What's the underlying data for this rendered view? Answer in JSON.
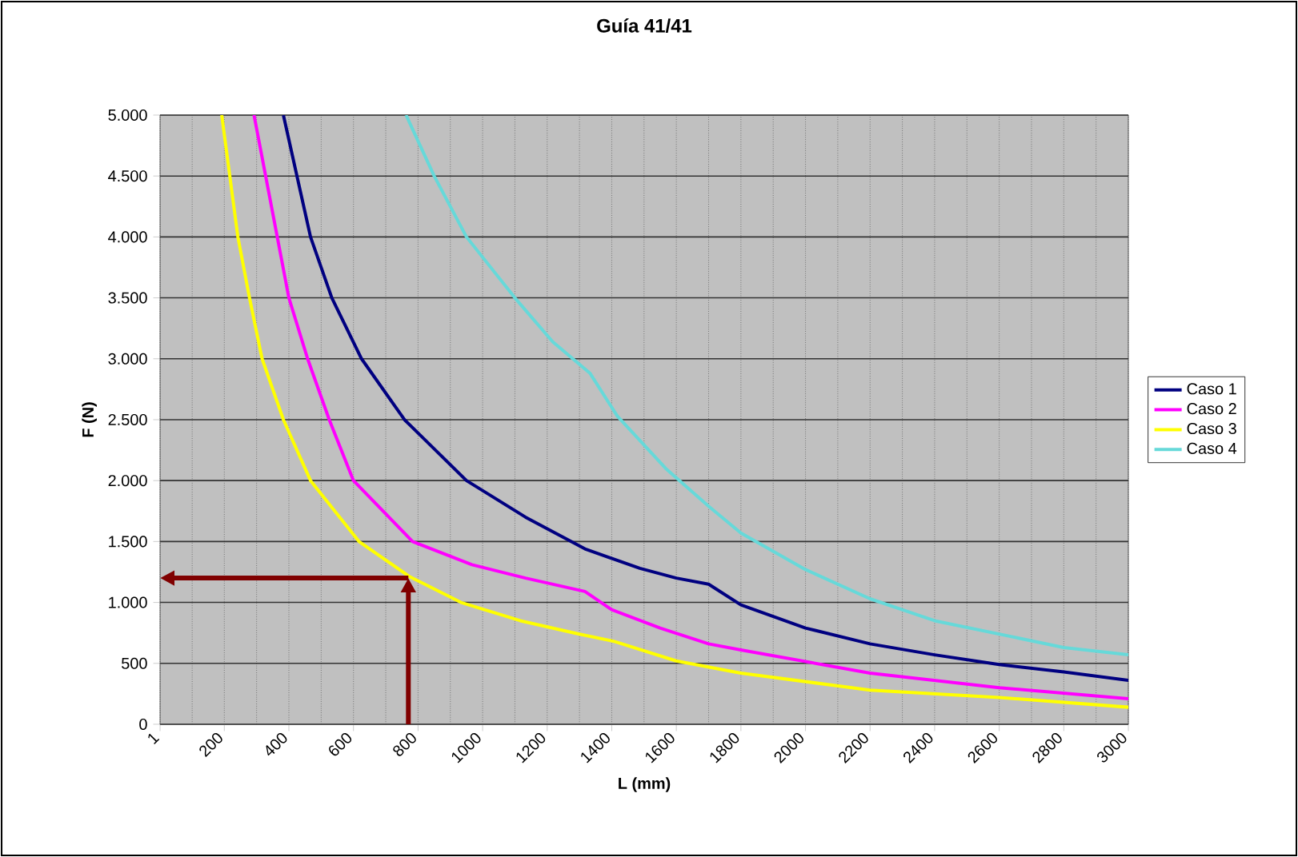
{
  "chart_data": {
    "type": "line",
    "title": "Guía 41/41",
    "xlabel": "L (mm)",
    "ylabel": "F (N)",
    "xlim": [
      1,
      3000
    ],
    "xticks": [
      1,
      200,
      400,
      600,
      800,
      1000,
      1200,
      1400,
      1600,
      1800,
      2000,
      2200,
      2400,
      2600,
      2800,
      3000
    ],
    "ylim": [
      0,
      5000
    ],
    "yticks": [
      {
        "value": 0,
        "label": "0"
      },
      {
        "value": 500,
        "label": "500"
      },
      {
        "value": 1000,
        "label": "1.000"
      },
      {
        "value": 1500,
        "label": "1.500"
      },
      {
        "value": 2000,
        "label": "2.000"
      },
      {
        "value": 2500,
        "label": "2.500"
      },
      {
        "value": 3000,
        "label": "3.000"
      },
      {
        "value": 3500,
        "label": "3.500"
      },
      {
        "value": 4000,
        "label": "4.000"
      },
      {
        "value": 4500,
        "label": "4.500"
      },
      {
        "value": 5000,
        "label": "5.000"
      }
    ],
    "grid": true,
    "legend": "right",
    "marker": "none",
    "line_style": "solid",
    "ref_lines": [
      {
        "axis": "x",
        "value": 770,
        "color": "#800000"
      },
      {
        "axis": "y",
        "value": 1200,
        "color": "#800000"
      }
    ],
    "series": [
      {
        "name": "Caso 1",
        "color": "#000080",
        "x": [
          383,
          467,
          533,
          625,
          758,
          950,
          1133,
          1317,
          1487,
          1600,
          1700,
          1800,
          2000,
          2200,
          2400,
          2600,
          2800,
          3000
        ],
        "values": [
          5000,
          4000,
          3500,
          3000,
          2500,
          2000,
          1700,
          1440,
          1280,
          1200,
          1150,
          980,
          790,
          660,
          570,
          490,
          430,
          360
        ]
      },
      {
        "name": "Caso 2",
        "color": "#ff00ff",
        "x": [
          292,
          400,
          458,
          525,
          600,
          783,
          967,
          1133,
          1317,
          1400,
          1550,
          1700,
          1800,
          2200,
          2600,
          3000
        ],
        "values": [
          5000,
          3500,
          3000,
          2500,
          2000,
          1500,
          1310,
          1200,
          1090,
          940,
          790,
          660,
          610,
          420,
          300,
          210
        ]
      },
      {
        "name": "Caso 3",
        "color": "#ffff00",
        "x": [
          192,
          242,
          278,
          317,
          383,
          467,
          617,
          775,
          933,
          1117,
          1300,
          1408,
          1600,
          1800,
          2200,
          2600,
          3000
        ],
        "values": [
          5000,
          4000,
          3500,
          3000,
          2500,
          2000,
          1500,
          1210,
          1000,
          850,
          740,
          680,
          520,
          420,
          280,
          220,
          140
        ]
      },
      {
        "name": "Caso 4",
        "color": "#66d9d9",
        "x": [
          763,
          850,
          950,
          1100,
          1217,
          1333,
          1417,
          1567,
          1700,
          1800,
          2000,
          2200,
          2400,
          2600,
          2800,
          3000
        ],
        "values": [
          5000,
          4500,
          4000,
          3500,
          3140,
          2880,
          2530,
          2100,
          1790,
          1570,
          1270,
          1030,
          850,
          740,
          630,
          570
        ]
      }
    ]
  }
}
